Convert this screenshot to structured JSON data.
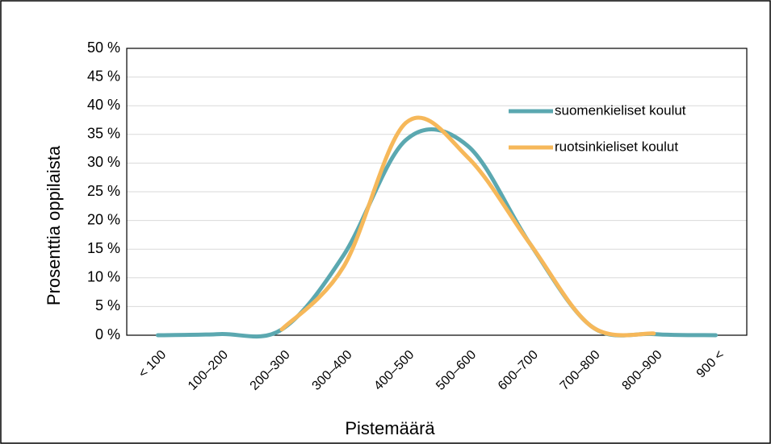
{
  "chart_data": {
    "type": "line",
    "categories": [
      "< 100",
      "100–200",
      "200–300",
      "300–400",
      "400–500",
      "500–600",
      "600–700",
      "700–800",
      "800–900",
      "900 <"
    ],
    "series": [
      {
        "name": "suomenkieliset koulut",
        "color": "#5ba8b0",
        "values": [
          0,
          0.2,
          1,
          14,
          34,
          33,
          16,
          1.5,
          0.2,
          0
        ]
      },
      {
        "name": "ruotsinkieliset koulut",
        "color": "#f6b85a",
        "values": [
          null,
          null,
          1,
          12,
          37,
          31,
          16,
          1.5,
          0.3,
          null
        ]
      }
    ],
    "ylim": [
      0,
      50
    ],
    "yticks": [
      {
        "value": 0,
        "label": "0 %"
      },
      {
        "value": 5,
        "label": "5 %"
      },
      {
        "value": 10,
        "label": "10 %"
      },
      {
        "value": 15,
        "label": "15 %"
      },
      {
        "value": 20,
        "label": "20 %"
      },
      {
        "value": 25,
        "label": "25 %"
      },
      {
        "value": 30,
        "label": "30 %"
      },
      {
        "value": 35,
        "label": "35 %"
      },
      {
        "value": 40,
        "label": "40 %"
      },
      {
        "value": 45,
        "label": "45 %"
      },
      {
        "value": 50,
        "label": "50 %"
      }
    ],
    "xlabel": "Pistemäärä",
    "ylabel": "Prosenttia oppilaista",
    "grid": true,
    "legend": "upper right"
  }
}
